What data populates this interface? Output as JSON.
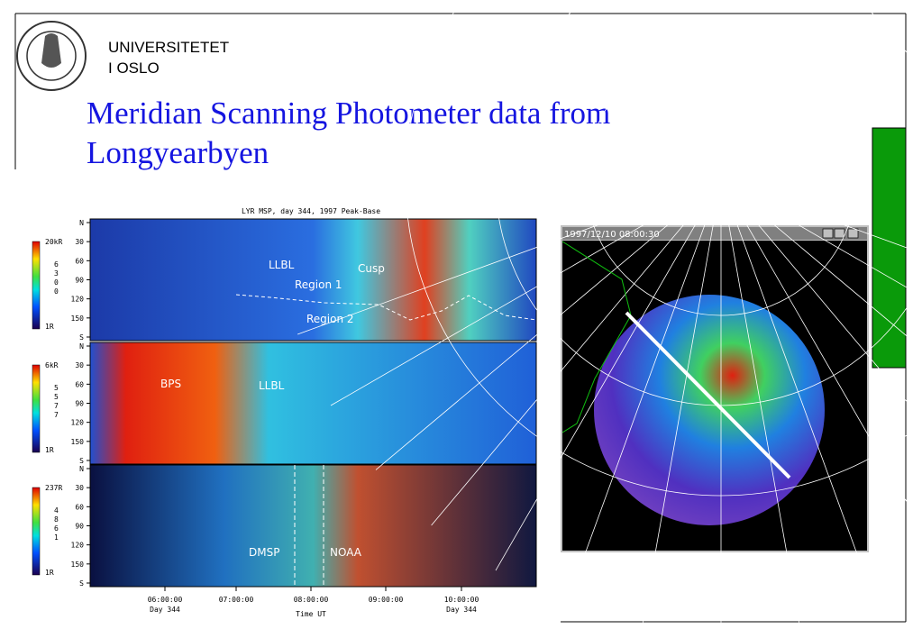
{
  "header": {
    "university": [
      "UNIVERSITETET",
      "I OSLO"
    ],
    "title": [
      "Meridian Scanning Photometer data from",
      "Longyearbyen"
    ]
  },
  "keogram": {
    "title": "LYR MSP, day 344, 1997 Peak-Base",
    "panels": [
      {
        "yticks": [
          "N",
          "30",
          "60",
          "90",
          "120",
          "150",
          "S"
        ],
        "scale": [
          "20kR",
          "6",
          "3",
          "0",
          "0",
          "1R"
        ],
        "annotations": [
          "LLBL",
          "Cusp",
          "Region 1",
          "Region 2"
        ]
      },
      {
        "yticks": [
          "N",
          "30",
          "60",
          "90",
          "120",
          "150",
          "S"
        ],
        "scale": [
          "6kR",
          "5",
          "5",
          "7",
          "7",
          "1R"
        ],
        "annotations": [
          "BPS",
          "LLBL"
        ]
      },
      {
        "yticks": [
          "N",
          "30",
          "60",
          "90",
          "120",
          "150",
          "S"
        ],
        "scale": [
          "237R",
          "4",
          "8",
          "6",
          "1",
          "1R"
        ],
        "annotations": [
          "DMSP",
          "NOAA"
        ]
      }
    ],
    "xticks": [
      {
        "time": "06:00:00",
        "day": "Day 344"
      },
      {
        "time": "07:00:00"
      },
      {
        "time": "08:00:00"
      },
      {
        "time": "09:00:00"
      },
      {
        "time": "10:00:00",
        "day": "Day 344"
      }
    ],
    "xlabel": "Time UT"
  },
  "window": {
    "title": "1997/12/10 08:00:30"
  }
}
